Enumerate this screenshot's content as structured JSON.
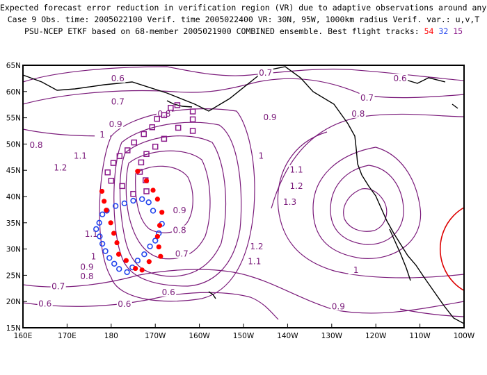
{
  "header": {
    "line1": "Expected forecast error reduction in verification region (VR) due to adaptive observations around any grid point.",
    "line2": "Case 9  Obs. time: 2005022100  Verif. time 2005022400  VR: 30N, 95W, 1000km radius  Verif. var.: u,v,T",
    "line3_prefix": "PSU-NCEP ETKF based on 68-member 2005021900 COMBINED ensemble.  Best flight tracks:",
    "track_red": "54",
    "track_blue": "32",
    "track_purple": "15"
  },
  "colors": {
    "contour": "#7a1a7a",
    "red_track": "#ff0000",
    "blue_track": "#2244ee",
    "purple_track": "#8b1a8b",
    "verification_circle": "#dd0000",
    "coast": "#000000"
  },
  "axes": {
    "lon_ticks": [
      "160E",
      "170E",
      "180",
      "170W",
      "160W",
      "150W",
      "140W",
      "130W",
      "120W",
      "110W",
      "100W"
    ],
    "lat_ticks": [
      "15N",
      "20N",
      "25N",
      "30N",
      "35N",
      "40N",
      "45N",
      "50N",
      "55N",
      "60N",
      "65N"
    ],
    "lon_range": [
      160,
      260
    ],
    "lat_range": [
      15,
      65
    ]
  },
  "contour_labels": [
    {
      "text": "0.6",
      "lon": 181.5,
      "lat": 62.2
    },
    {
      "text": "0.7",
      "lon": 181.5,
      "lat": 57.8
    },
    {
      "text": "0.8",
      "lon": 192,
      "lat": 55.5
    },
    {
      "text": "0.9",
      "lon": 181,
      "lat": 53.5
    },
    {
      "text": "1",
      "lon": 178,
      "lat": 51.5
    },
    {
      "text": "1.1",
      "lon": 173,
      "lat": 47.5
    },
    {
      "text": "1.2",
      "lon": 168.5,
      "lat": 45.2
    },
    {
      "text": "0.8",
      "lon": 163,
      "lat": 49.5
    },
    {
      "text": "0.7",
      "lon": 215,
      "lat": 63.3
    },
    {
      "text": "0.6",
      "lon": 245.5,
      "lat": 62.2
    },
    {
      "text": "0.7",
      "lon": 238,
      "lat": 58.5
    },
    {
      "text": "0.8",
      "lon": 236,
      "lat": 55.5
    },
    {
      "text": "0.9",
      "lon": 216,
      "lat": 54.8
    },
    {
      "text": "1",
      "lon": 214,
      "lat": 47.5
    },
    {
      "text": "1.1",
      "lon": 222,
      "lat": 44.8
    },
    {
      "text": "1.2",
      "lon": 222,
      "lat": 41.7
    },
    {
      "text": "1.3",
      "lon": 220.5,
      "lat": 38.7
    },
    {
      "text": "1.2",
      "lon": 213,
      "lat": 30.2
    },
    {
      "text": "1.1",
      "lon": 212.5,
      "lat": 27.4
    },
    {
      "text": "1",
      "lon": 235.5,
      "lat": 25.7
    },
    {
      "text": "0.9",
      "lon": 231.5,
      "lat": 18.8
    },
    {
      "text": "0.9",
      "lon": 195.5,
      "lat": 37.1
    },
    {
      "text": "0.8",
      "lon": 195.5,
      "lat": 33.3
    },
    {
      "text": "0.7",
      "lon": 196,
      "lat": 28.8
    },
    {
      "text": "0.6",
      "lon": 193,
      "lat": 21.5
    },
    {
      "text": "0.7",
      "lon": 168,
      "lat": 22.6
    },
    {
      "text": "0.6",
      "lon": 165,
      "lat": 19.3
    },
    {
      "text": "0.6",
      "lon": 183,
      "lat": 19.2
    },
    {
      "text": "1.1",
      "lon": 175.5,
      "lat": 32.6
    },
    {
      "text": "1",
      "lon": 176,
      "lat": 28.3
    },
    {
      "text": "0.9",
      "lon": 174.5,
      "lat": 26.3
    },
    {
      "text": "0.8",
      "lon": 174.5,
      "lat": 24.5
    }
  ],
  "flight_tracks": {
    "red": [
      [
        186.0,
        44.8
      ],
      [
        188.0,
        43.0
      ],
      [
        189.5,
        41.2
      ],
      [
        190.5,
        39.5
      ],
      [
        191.5,
        37.0
      ],
      [
        191.0,
        34.5
      ],
      [
        190.5,
        32.4
      ],
      [
        190.8,
        30.4
      ],
      [
        191.2,
        28.6
      ],
      [
        188.6,
        27.6
      ],
      [
        187.0,
        26.0
      ],
      [
        185.5,
        26.3
      ],
      [
        183.4,
        27.8
      ],
      [
        181.7,
        29.0
      ],
      [
        181.3,
        31.2
      ],
      [
        180.6,
        33.0
      ],
      [
        179.9,
        35.0
      ],
      [
        178.9,
        37.4
      ],
      [
        178.4,
        39.1
      ],
      [
        177.9,
        41.0
      ]
    ],
    "blue": [
      [
        189.5,
        37.3
      ],
      [
        188.5,
        38.9
      ],
      [
        187.0,
        39.5
      ],
      [
        185.0,
        39.2
      ],
      [
        183.0,
        38.7
      ],
      [
        181.0,
        38.2
      ],
      [
        179.0,
        37.3
      ],
      [
        178.0,
        36.6
      ],
      [
        177.3,
        35.0
      ],
      [
        176.6,
        33.8
      ],
      [
        177.4,
        32.4
      ],
      [
        178.0,
        31.0
      ],
      [
        178.7,
        29.6
      ],
      [
        179.6,
        28.3
      ],
      [
        180.7,
        27.2
      ],
      [
        181.8,
        26.2
      ],
      [
        183.6,
        25.6
      ],
      [
        184.8,
        26.5
      ],
      [
        186.0,
        27.8
      ],
      [
        187.5,
        29.0
      ],
      [
        188.8,
        30.5
      ],
      [
        190.0,
        31.6
      ],
      [
        190.8,
        33.0
      ],
      [
        191.5,
        34.8
      ]
    ],
    "purple": [
      [
        198.5,
        56.2
      ],
      [
        198.5,
        54.7
      ],
      [
        195.2,
        53.1
      ],
      [
        198.5,
        52.5
      ],
      [
        192.0,
        51.0
      ],
      [
        190.0,
        49.5
      ],
      [
        188.0,
        48.1
      ],
      [
        186.8,
        46.5
      ],
      [
        186.5,
        44.7
      ],
      [
        187.8,
        43.1
      ],
      [
        188.0,
        41.0
      ],
      [
        185.0,
        40.5
      ],
      [
        182.5,
        42.0
      ],
      [
        180.0,
        43.0
      ],
      [
        179.2,
        44.6
      ],
      [
        180.5,
        46.4
      ],
      [
        181.9,
        47.7
      ],
      [
        183.7,
        48.8
      ],
      [
        185.2,
        50.3
      ],
      [
        187.4,
        51.9
      ],
      [
        189.3,
        53.2
      ],
      [
        190.4,
        54.8
      ],
      [
        192.0,
        55.5
      ],
      [
        193.5,
        56.9
      ],
      [
        195.0,
        57.4
      ]
    ]
  },
  "verification_region": {
    "center_lon": 265,
    "center_lat": 30,
    "radius_km": 1000
  }
}
